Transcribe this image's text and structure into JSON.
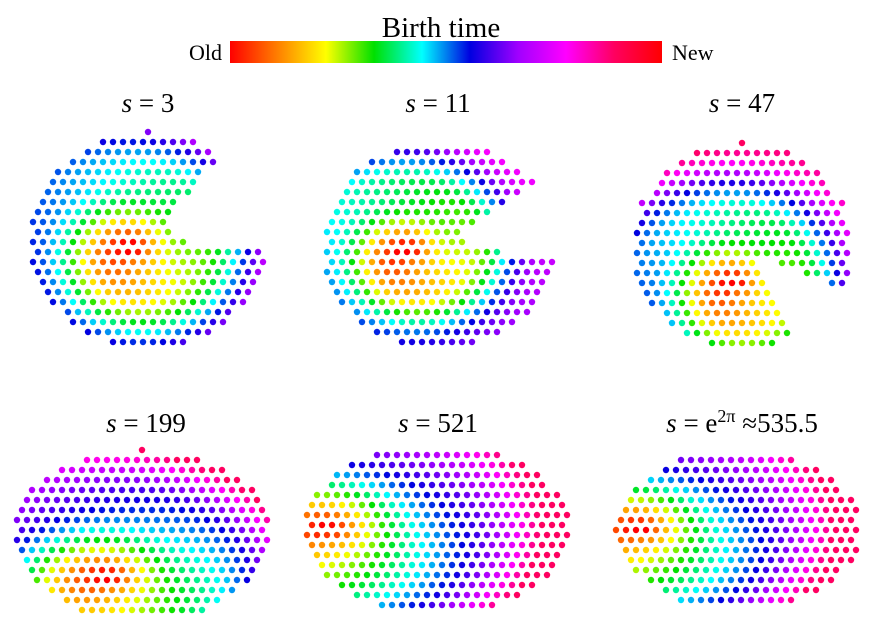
{
  "colorbar": {
    "title": "Birth time",
    "low_label": "Old",
    "high_label": "New",
    "colors": [
      "#ff0000",
      "#ff8000",
      "#ffff00",
      "#00e000",
      "#00ffff",
      "#0000e0",
      "#a000ff",
      "#ff00ff",
      "#ff0060",
      "#ff0000"
    ]
  },
  "panels": [
    {
      "s_symbol": "s",
      "equals": " = ",
      "value": "3",
      "sup": "",
      "approx": ""
    },
    {
      "s_symbol": "s",
      "equals": " = ",
      "value": "11",
      "sup": "",
      "approx": ""
    },
    {
      "s_symbol": "s",
      "equals": " = ",
      "value": "47",
      "sup": "",
      "approx": ""
    },
    {
      "s_symbol": "s",
      "equals": " = ",
      "value": "199",
      "sup": "",
      "approx": ""
    },
    {
      "s_symbol": "s",
      "equals": " = ",
      "value": "521",
      "sup": "",
      "approx": ""
    },
    {
      "s_symbol": "s",
      "equals": " = ",
      "value": "e",
      "sup": "2π",
      "approx": " ≈535.5"
    }
  ]
}
